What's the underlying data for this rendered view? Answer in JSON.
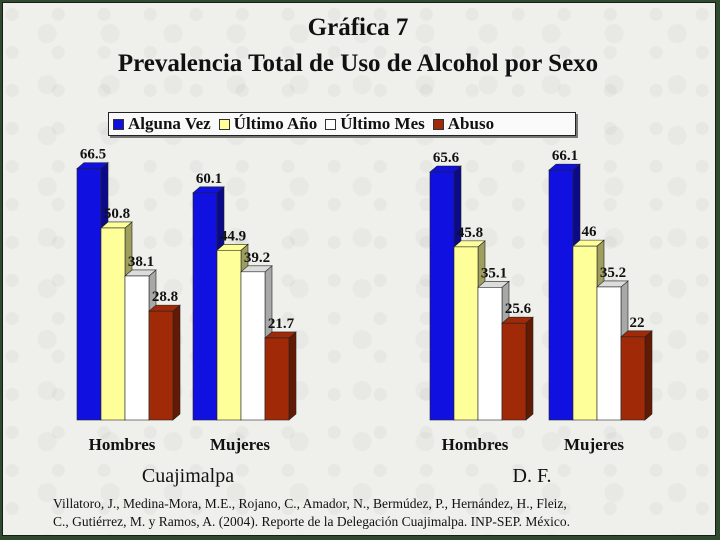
{
  "chart_data": {
    "type": "bar",
    "title": "Gráfica 7",
    "subtitle": "Prevalencia Total de Uso de Alcohol por Sexo",
    "legend_position": "top",
    "grid": false,
    "ylim": [
      0,
      70
    ],
    "groups": [
      {
        "name": "Cuajimalpa",
        "categories": [
          "Hombres",
          "Mujeres"
        ]
      },
      {
        "name": "D. F.",
        "categories": [
          "Hombres",
          "Mujeres"
        ]
      }
    ],
    "series": [
      {
        "name": "Alguna Vez",
        "color": "#1010e0",
        "values": [
          66.5,
          60.1,
          65.6,
          66.1
        ]
      },
      {
        "name": "Último Año",
        "color": "#ffff9a",
        "values": [
          50.8,
          44.9,
          45.8,
          46
        ]
      },
      {
        "name": "Último Mes",
        "color": "#ffffff",
        "values": [
          38.1,
          39.2,
          35.1,
          35.2
        ]
      },
      {
        "name": "Abuso",
        "color": "#a02a08",
        "values": [
          28.8,
          21.7,
          25.6,
          22
        ]
      }
    ]
  },
  "source": {
    "line1": "Villatoro, J., Medina-Mora, M.E., Rojano, C., Amador, N., Bermúdez, P., Hernández, H., Fleiz,",
    "line2": "C., Gutiérrez, M. y Ramos, A. (2004). Reporte de la Delegación Cuajimalpa. INP-SEP. México."
  }
}
